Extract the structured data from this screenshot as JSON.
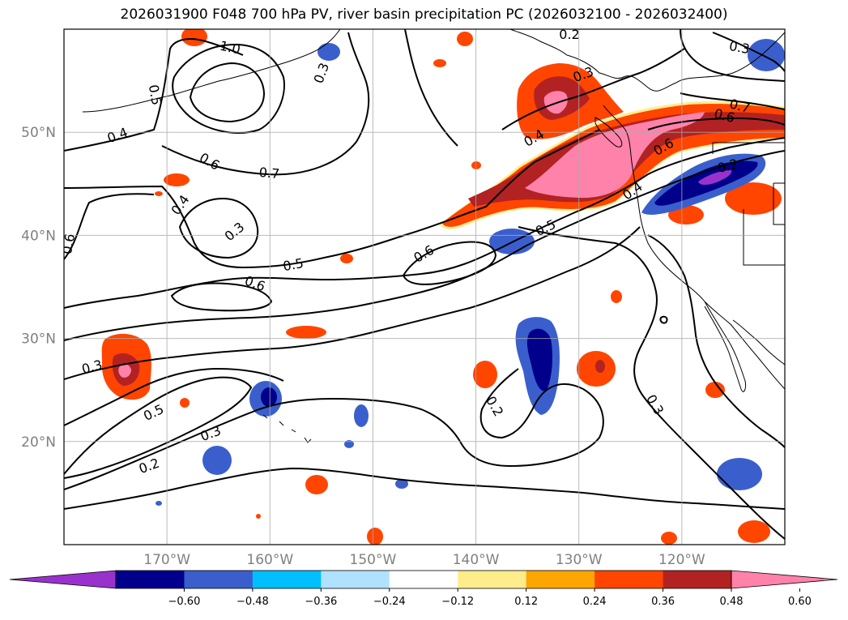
{
  "title": "2026031900 F048 700 hPa PV, river basin precipitation PC (2026032100 - 2026032400)",
  "map": {
    "projection": "PlateCarree",
    "lon_range": [
      -180,
      -110
    ],
    "lat_range": [
      10,
      60
    ],
    "gridlines": true,
    "lat_ticks": [
      {
        "value": 20,
        "label": "20°N"
      },
      {
        "value": 30,
        "label": "30°N"
      },
      {
        "value": 40,
        "label": "40°N"
      },
      {
        "value": 50,
        "label": "50°N"
      }
    ],
    "lon_ticks": [
      {
        "value": -170,
        "label": "170°W"
      },
      {
        "value": -160,
        "label": "160°W"
      },
      {
        "value": -150,
        "label": "150°W"
      },
      {
        "value": -140,
        "label": "140°W"
      },
      {
        "value": -130,
        "label": "130°W"
      },
      {
        "value": -120,
        "label": "120°W"
      }
    ]
  },
  "pv_contour_labels": [
    "1.0",
    "0.5",
    "0.4",
    "0.6",
    "0.7",
    "0.4",
    "0.3",
    "0.5",
    "0.6",
    "0.6",
    "0.3",
    "0.5",
    "0.3",
    "0.2",
    "0.4",
    "0.5",
    "0.6",
    "0.2",
    "0.3",
    "0.4",
    "0.6",
    "0.7",
    "0.2",
    "0.3",
    "0.3",
    "0.2",
    "0.3",
    "0.6"
  ],
  "colorbar": {
    "extend": "both",
    "colors": [
      "#9932cc",
      "#00008b",
      "#3a5fcd",
      "#00bfff",
      "#b0e2ff",
      "#ffffff",
      "#ffec8b",
      "#ffa500",
      "#ff4500",
      "#b22222",
      "#ff82ab"
    ],
    "ticks": [
      "−0.60",
      "−0.48",
      "−0.36",
      "−0.24",
      "−0.12",
      "0.12",
      "0.24",
      "0.36",
      "0.48",
      "0.60"
    ]
  },
  "precip_colors": {
    "neg_strong": "#00008b",
    "neg_mid": "#3a5fcd",
    "neg_light": "#00bfff",
    "neg_faint": "#b0e2ff",
    "purple": "#9932cc",
    "pos_faint": "#ffec8b",
    "pos_light": "#ffa500",
    "pos_mid": "#ff4500",
    "pos_strong": "#b22222",
    "pos_max": "#ff82ab"
  }
}
